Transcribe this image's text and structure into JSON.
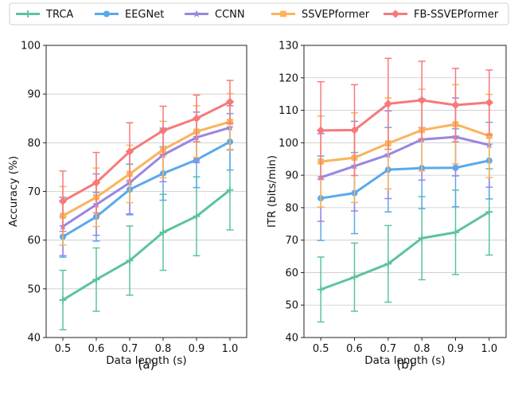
{
  "legend": [
    {
      "name": "TRCA",
      "color": "#5bc49b",
      "marker": "plus"
    },
    {
      "name": "EEGNet",
      "color": "#5aa9ec",
      "marker": "circle"
    },
    {
      "name": "CCNN",
      "color": "#9a86e0",
      "marker": "star"
    },
    {
      "name": "SSVEPformer",
      "color": "#fbb35a",
      "marker": "square"
    },
    {
      "name": "FB-SSVEPformer",
      "color": "#f7797a",
      "marker": "diamond"
    }
  ],
  "chart_data": [
    {
      "type": "line",
      "caption": "(a)",
      "xlabel": "Data length (s)",
      "ylabel": "Accuracy (%)",
      "x": [
        0.5,
        0.6,
        0.7,
        0.8,
        0.9,
        1.0
      ],
      "x_tick_labels": [
        "0.5",
        "0.6",
        "0.7",
        "0.8",
        "0.9",
        "1.0"
      ],
      "ylim": [
        40,
        100
      ],
      "y_ticks": [
        40,
        50,
        60,
        70,
        80,
        90,
        100
      ],
      "grid": "horizontal",
      "series": [
        {
          "name": "TRCA",
          "values": [
            47.7,
            51.9,
            55.8,
            61.6,
            64.9,
            70.3
          ],
          "errors": [
            6.1,
            6.5,
            7.1,
            7.8,
            8.1,
            8.2
          ]
        },
        {
          "name": "EEGNet",
          "values": [
            60.7,
            64.8,
            70.4,
            73.7,
            76.5,
            80.2
          ],
          "errors": [
            4.2,
            5.0,
            5.2,
            5.5,
            5.7,
            5.8
          ]
        },
        {
          "name": "CCNN",
          "values": [
            62.8,
            67.3,
            71.8,
            77.5,
            81.1,
            83.1
          ],
          "errors": [
            6.0,
            6.3,
            6.4,
            5.5,
            5.2,
            4.5
          ]
        },
        {
          "name": "SSVEPformer",
          "values": [
            65.0,
            68.8,
            73.6,
            78.6,
            82.3,
            84.3
          ],
          "errors": [
            6.0,
            6.0,
            5.9,
            5.8,
            5.3,
            5.8
          ]
        },
        {
          "name": "FB-SSVEPformer",
          "values": [
            68.0,
            71.8,
            78.2,
            82.5,
            85.0,
            88.4
          ],
          "errors": [
            6.2,
            6.2,
            5.9,
            5.0,
            4.8,
            4.4
          ]
        }
      ]
    },
    {
      "type": "line",
      "caption": "(b)",
      "xlabel": "Data length (s)",
      "ylabel": "ITR (bits/min)",
      "x": [
        0.5,
        0.6,
        0.7,
        0.8,
        0.9,
        1.0
      ],
      "x_tick_labels": [
        "0.5",
        "0.6",
        "0.7",
        "0.8",
        "0.9",
        "1.0"
      ],
      "ylim": [
        40,
        130
      ],
      "y_ticks": [
        40,
        50,
        60,
        70,
        80,
        90,
        100,
        110,
        120,
        130
      ],
      "grid": "horizontal",
      "series": [
        {
          "name": "TRCA",
          "values": [
            54.8,
            58.6,
            62.7,
            70.6,
            72.4,
            78.7
          ],
          "errors": [
            10.0,
            10.5,
            11.8,
            12.8,
            13.0,
            13.3
          ]
        },
        {
          "name": "EEGNet",
          "values": [
            82.9,
            84.5,
            91.7,
            92.2,
            92.3,
            94.5
          ],
          "errors": [
            13.0,
            12.5,
            13.0,
            12.5,
            12.0,
            11.8
          ]
        },
        {
          "name": "CCNN",
          "values": [
            89.3,
            92.8,
            96.3,
            101.0,
            101.8,
            99.3
          ],
          "errors": [
            13.5,
            13.8,
            13.5,
            12.5,
            12.0,
            13.0
          ]
        },
        {
          "name": "SSVEPformer",
          "values": [
            94.2,
            95.4,
            99.8,
            103.9,
            105.7,
            102.1
          ],
          "errors": [
            14.0,
            13.8,
            14.0,
            12.6,
            12.2,
            12.8
          ]
        },
        {
          "name": "FB-SSVEPformer",
          "values": [
            103.8,
            103.9,
            112.0,
            113.1,
            111.6,
            112.4
          ],
          "errors": [
            15.0,
            14.0,
            14.0,
            12.0,
            11.3,
            10.0
          ]
        }
      ]
    }
  ]
}
